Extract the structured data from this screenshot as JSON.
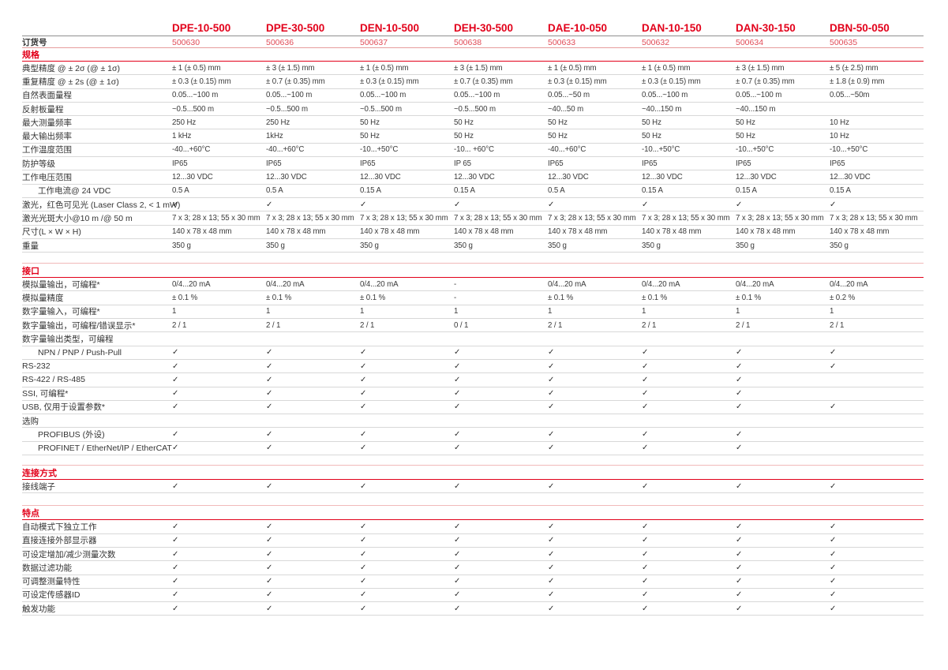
{
  "colors": {
    "accent_red": "#e2001a",
    "order_number_red": "#e14b57",
    "section_top_line": "#f1b9b9",
    "row_line": "#d8d8d8",
    "text": "#3a3a3a"
  },
  "check_glyph": "✓",
  "table": {
    "order_label": "订货号",
    "columns": [
      {
        "model": "DPE-10-500",
        "order": "500630"
      },
      {
        "model": "DPE-30-500",
        "order": "500636"
      },
      {
        "model": "DEN-10-500",
        "order": "500637"
      },
      {
        "model": "DEH-30-500",
        "order": "500638"
      },
      {
        "model": "DAE-10-050",
        "order": "500633"
      },
      {
        "model": "DAN-10-150",
        "order": "500632"
      },
      {
        "model": "DAN-30-150",
        "order": "500634"
      },
      {
        "model": "DBN-50-050",
        "order": "500635"
      }
    ],
    "sections": [
      {
        "title": "规格",
        "rows": [
          {
            "label": "典型精度 @ ± 2σ (@ ± 1σ)",
            "indent": false,
            "subheader": false,
            "values": [
              "± 1 (± 0.5) mm",
              "± 3 (± 1.5) mm",
              "± 1 (± 0.5) mm",
              "± 3 (± 1.5) mm",
              "± 1 (± 0.5) mm",
              "± 1 (± 0.5) mm",
              "± 3 (± 1.5) mm",
              "± 5 (± 2.5) mm"
            ]
          },
          {
            "label": "重复精度 @ ± 2s (@ ± 1σ)",
            "indent": false,
            "subheader": false,
            "values": [
              "± 0.3 (± 0.15) mm",
              "± 0.7 (± 0.35) mm",
              "± 0.3 (± 0.15) mm",
              "± 0.7 (± 0.35) mm",
              "± 0.3 (± 0.15) mm",
              "± 0.3 (± 0.15) mm",
              "± 0.7 (± 0.35) mm",
              "± 1.8 (± 0.9) mm"
            ]
          },
          {
            "label": "自然表面量程",
            "indent": false,
            "subheader": false,
            "values": [
              "0.05...~100 m",
              "0.05...~100 m",
              "0.05...~100 m",
              "0.05...~100 m",
              "0.05...~50 m",
              "0.05...~100 m",
              "0.05...~100 m",
              "0.05...~50m"
            ]
          },
          {
            "label": "反射板量程",
            "indent": false,
            "subheader": false,
            "values": [
              "~0.5...500 m",
              "~0.5...500 m",
              "~0.5...500 m",
              "~0.5...500 m",
              "~40...50 m",
              "~40...150 m",
              "~40...150 m",
              ""
            ]
          },
          {
            "label": "最大测量频率",
            "indent": false,
            "subheader": false,
            "values": [
              "250 Hz",
              "250 Hz",
              "50 Hz",
              "50 Hz",
              "50 Hz",
              "50 Hz",
              "50 Hz",
              "10 Hz"
            ]
          },
          {
            "label": "最大输出频率",
            "indent": false,
            "subheader": false,
            "values": [
              "1 kHz",
              "1kHz",
              "50 Hz",
              "50 Hz",
              "50 Hz",
              "50 Hz",
              "50 Hz",
              "10 Hz"
            ]
          },
          {
            "label": "工作温度范围",
            "indent": false,
            "subheader": false,
            "values": [
              "-40...+60°C",
              "-40...+60°C",
              "-10...+50°C",
              "-10... +60°C",
              "-40...+60°C",
              "-10...+50°C",
              "-10...+50°C",
              "-10...+50°C"
            ]
          },
          {
            "label": "防护等级",
            "indent": false,
            "subheader": false,
            "values": [
              "IP65",
              "IP65",
              "IP65",
              "IP 65",
              "IP65",
              "IP65",
              "IP65",
              "IP65"
            ]
          },
          {
            "label": "工作电压范围",
            "indent": false,
            "subheader": false,
            "values": [
              "12...30 VDC",
              "12...30 VDC",
              "12...30 VDC",
              "12...30 VDC",
              "12...30 VDC",
              "12...30 VDC",
              "12...30 VDC",
              "12...30 VDC"
            ]
          },
          {
            "label": "工作电流@ 24 VDC",
            "indent": true,
            "subheader": false,
            "values": [
              "0.5 A",
              "0.5 A",
              "0.15 A",
              "0.15 A",
              "0.5 A",
              "0.15 A",
              "0.15 A",
              "0.15 A"
            ]
          },
          {
            "label": "激光，红色可见光 (Laser Class 2, < 1 mW)",
            "indent": false,
            "subheader": false,
            "values": [
              "✓",
              "✓",
              "✓",
              "✓",
              "✓",
              "✓",
              "✓",
              "✓"
            ]
          },
          {
            "label": "激光光斑大小@10 m /@ 50 m",
            "indent": false,
            "subheader": false,
            "values": [
              "7 x 3; 28 x 13; 55 x 30 mm",
              "7 x 3; 28 x 13; 55 x 30 mm",
              "7 x 3; 28 x 13; 55 x 30 mm",
              "7 x 3; 28 x 13; 55 x 30 mm",
              "7 x 3; 28 x 13; 55 x 30 mm",
              "7 x 3; 28 x 13; 55 x 30 mm",
              "7 x 3; 28 x 13; 55 x 30 mm",
              "7 x 3; 28 x 13; 55 x 30 mm"
            ]
          },
          {
            "label": "尺寸(L × W × H)",
            "indent": false,
            "subheader": false,
            "values": [
              "140 x 78 x 48 mm",
              "140 x 78 x 48 mm",
              "140 x 78 x 48 mm",
              "140 x 78 x 48 mm",
              "140 x 78 x 48 mm",
              "140 x 78 x 48 mm",
              "140 x 78 x 48 mm",
              "140 x 78 x 48 mm"
            ]
          },
          {
            "label": "重量",
            "indent": false,
            "subheader": false,
            "values": [
              "350 g",
              "350 g",
              "350 g",
              "350 g",
              "350 g",
              "350 g",
              "350 g",
              "350 g"
            ]
          }
        ]
      },
      {
        "title": "接口",
        "rows": [
          {
            "label": "模拟量输出，可编程*",
            "indent": false,
            "subheader": false,
            "values": [
              "0/4...20 mA",
              "0/4...20 mA",
              "0/4...20 mA",
              "-",
              "0/4...20 mA",
              "0/4...20 mA",
              "0/4...20 mA",
              "0/4...20 mA"
            ]
          },
          {
            "label": "模拟量精度",
            "indent": false,
            "subheader": false,
            "values": [
              "± 0.1 %",
              "± 0.1 %",
              "± 0.1 %",
              "-",
              "± 0.1 %",
              "± 0.1 %",
              "± 0.1 %",
              "± 0.2 %"
            ]
          },
          {
            "label": "数字量输入，可编程*",
            "indent": false,
            "subheader": false,
            "values": [
              "1",
              "1",
              "1",
              "1",
              "1",
              "1",
              "1",
              "1"
            ]
          },
          {
            "label": "数字量输出，可编程/错误显示*",
            "indent": false,
            "subheader": false,
            "values": [
              "2 / 1",
              "2 / 1",
              "2 / 1",
              "0 / 1",
              "2 / 1",
              "2 / 1",
              "2 / 1",
              "2 / 1"
            ]
          },
          {
            "label": "数字量输出类型，可编程",
            "indent": false,
            "subheader": true,
            "values": [
              "",
              "",
              "",
              "",
              "",
              "",
              "",
              ""
            ]
          },
          {
            "label": "NPN / PNP / Push-Pull",
            "indent": true,
            "subheader": false,
            "values": [
              "✓",
              "✓",
              "✓",
              "✓",
              "✓",
              "✓",
              "✓",
              "✓"
            ]
          },
          {
            "label": "RS-232",
            "indent": false,
            "subheader": false,
            "values": [
              "✓",
              "✓",
              "✓",
              "✓",
              "✓",
              "✓",
              "✓",
              "✓"
            ]
          },
          {
            "label": "RS-422 / RS-485",
            "indent": false,
            "subheader": false,
            "values": [
              "✓",
              "✓",
              "✓",
              "✓",
              "✓",
              "✓",
              "✓",
              ""
            ]
          },
          {
            "label": "SSI, 可编程*",
            "indent": false,
            "subheader": false,
            "values": [
              "✓",
              "✓",
              "✓",
              "✓",
              "✓",
              "✓",
              "✓",
              ""
            ]
          },
          {
            "label": "USB, 仅用于设置参数*",
            "indent": false,
            "subheader": false,
            "values": [
              "✓",
              "✓",
              "✓",
              "✓",
              "✓",
              "✓",
              "✓",
              "✓"
            ]
          },
          {
            "label": "选购",
            "indent": false,
            "subheader": true,
            "values": [
              "",
              "",
              "",
              "",
              "",
              "",
              "",
              ""
            ]
          },
          {
            "label": "PROFIBUS (外设)",
            "indent": true,
            "subheader": false,
            "values": [
              "✓",
              "✓",
              "✓",
              "✓",
              "✓",
              "✓",
              "✓",
              ""
            ]
          },
          {
            "label": "PROFINET / EtherNet/IP / EtherCAT",
            "indent": true,
            "subheader": false,
            "values": [
              "✓",
              "✓",
              "✓",
              "✓",
              "✓",
              "✓",
              "✓",
              ""
            ]
          }
        ]
      },
      {
        "title": "连接方式",
        "rows": [
          {
            "label": "接线端子",
            "indent": false,
            "subheader": false,
            "values": [
              "✓",
              "✓",
              "✓",
              "✓",
              "✓",
              "✓",
              "✓",
              "✓"
            ]
          }
        ]
      },
      {
        "title": "特点",
        "rows": [
          {
            "label": "自动模式下独立工作",
            "indent": false,
            "subheader": false,
            "values": [
              "✓",
              "✓",
              "✓",
              "✓",
              "✓",
              "✓",
              "✓",
              "✓"
            ]
          },
          {
            "label": "直接连接外部显示器",
            "indent": false,
            "subheader": false,
            "values": [
              "✓",
              "✓",
              "✓",
              "✓",
              "✓",
              "✓",
              "✓",
              "✓"
            ]
          },
          {
            "label": "可设定增加/减少测量次数",
            "indent": false,
            "subheader": false,
            "values": [
              "✓",
              "✓",
              "✓",
              "✓",
              "✓",
              "✓",
              "✓",
              "✓"
            ]
          },
          {
            "label": "数据过滤功能",
            "indent": false,
            "subheader": false,
            "values": [
              "✓",
              "✓",
              "✓",
              "✓",
              "✓",
              "✓",
              "✓",
              "✓"
            ]
          },
          {
            "label": "可调整测量特性",
            "indent": false,
            "subheader": false,
            "values": [
              "✓",
              "✓",
              "✓",
              "✓",
              "✓",
              "✓",
              "✓",
              "✓"
            ]
          },
          {
            "label": "可设定传感器ID",
            "indent": false,
            "subheader": false,
            "values": [
              "✓",
              "✓",
              "✓",
              "✓",
              "✓",
              "✓",
              "✓",
              "✓"
            ]
          },
          {
            "label": "触发功能",
            "indent": false,
            "subheader": false,
            "values": [
              "✓",
              "✓",
              "✓",
              "✓",
              "✓",
              "✓",
              "✓",
              "✓"
            ]
          }
        ]
      }
    ]
  }
}
